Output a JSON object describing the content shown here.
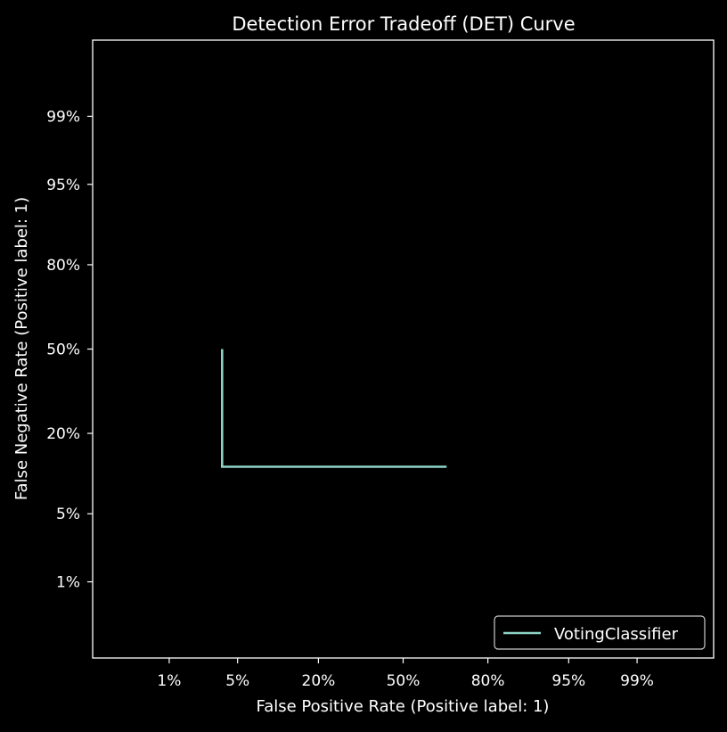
{
  "chart_data": {
    "type": "line",
    "title": "Detection Error Tradeoff (DET) Curve",
    "xlabel": "False Positive Rate (Positive label: 1)",
    "ylabel": "False Negative Rate (Positive label: 1)",
    "scale": "normal-deviate (probit)",
    "xlim": [
      0.001,
      0.999
    ],
    "ylim": [
      0.001,
      0.999
    ],
    "xticks": [
      {
        "value": 0.01,
        "label": "1%"
      },
      {
        "value": 0.05,
        "label": "5%"
      },
      {
        "value": 0.2,
        "label": "20%"
      },
      {
        "value": 0.5,
        "label": "50%"
      },
      {
        "value": 0.8,
        "label": "80%"
      },
      {
        "value": 0.95,
        "label": "95%"
      },
      {
        "value": 0.99,
        "label": "99%"
      }
    ],
    "yticks": [
      {
        "value": 0.01,
        "label": "1%"
      },
      {
        "value": 0.05,
        "label": "5%"
      },
      {
        "value": 0.2,
        "label": "20%"
      },
      {
        "value": 0.5,
        "label": "50%"
      },
      {
        "value": 0.8,
        "label": "80%"
      },
      {
        "value": 0.95,
        "label": "95%"
      },
      {
        "value": 0.99,
        "label": "99%"
      }
    ],
    "grid": false,
    "legend_position": "lower-right",
    "series": [
      {
        "name": "VotingClassifier",
        "color": "#8dd3c7",
        "points": [
          {
            "x": 0.036,
            "y": 0.5
          },
          {
            "x": 0.036,
            "y": 0.12
          },
          {
            "x": 0.667,
            "y": 0.12
          }
        ]
      }
    ],
    "background_color": "#000000",
    "foreground_color": "#ffffff"
  }
}
